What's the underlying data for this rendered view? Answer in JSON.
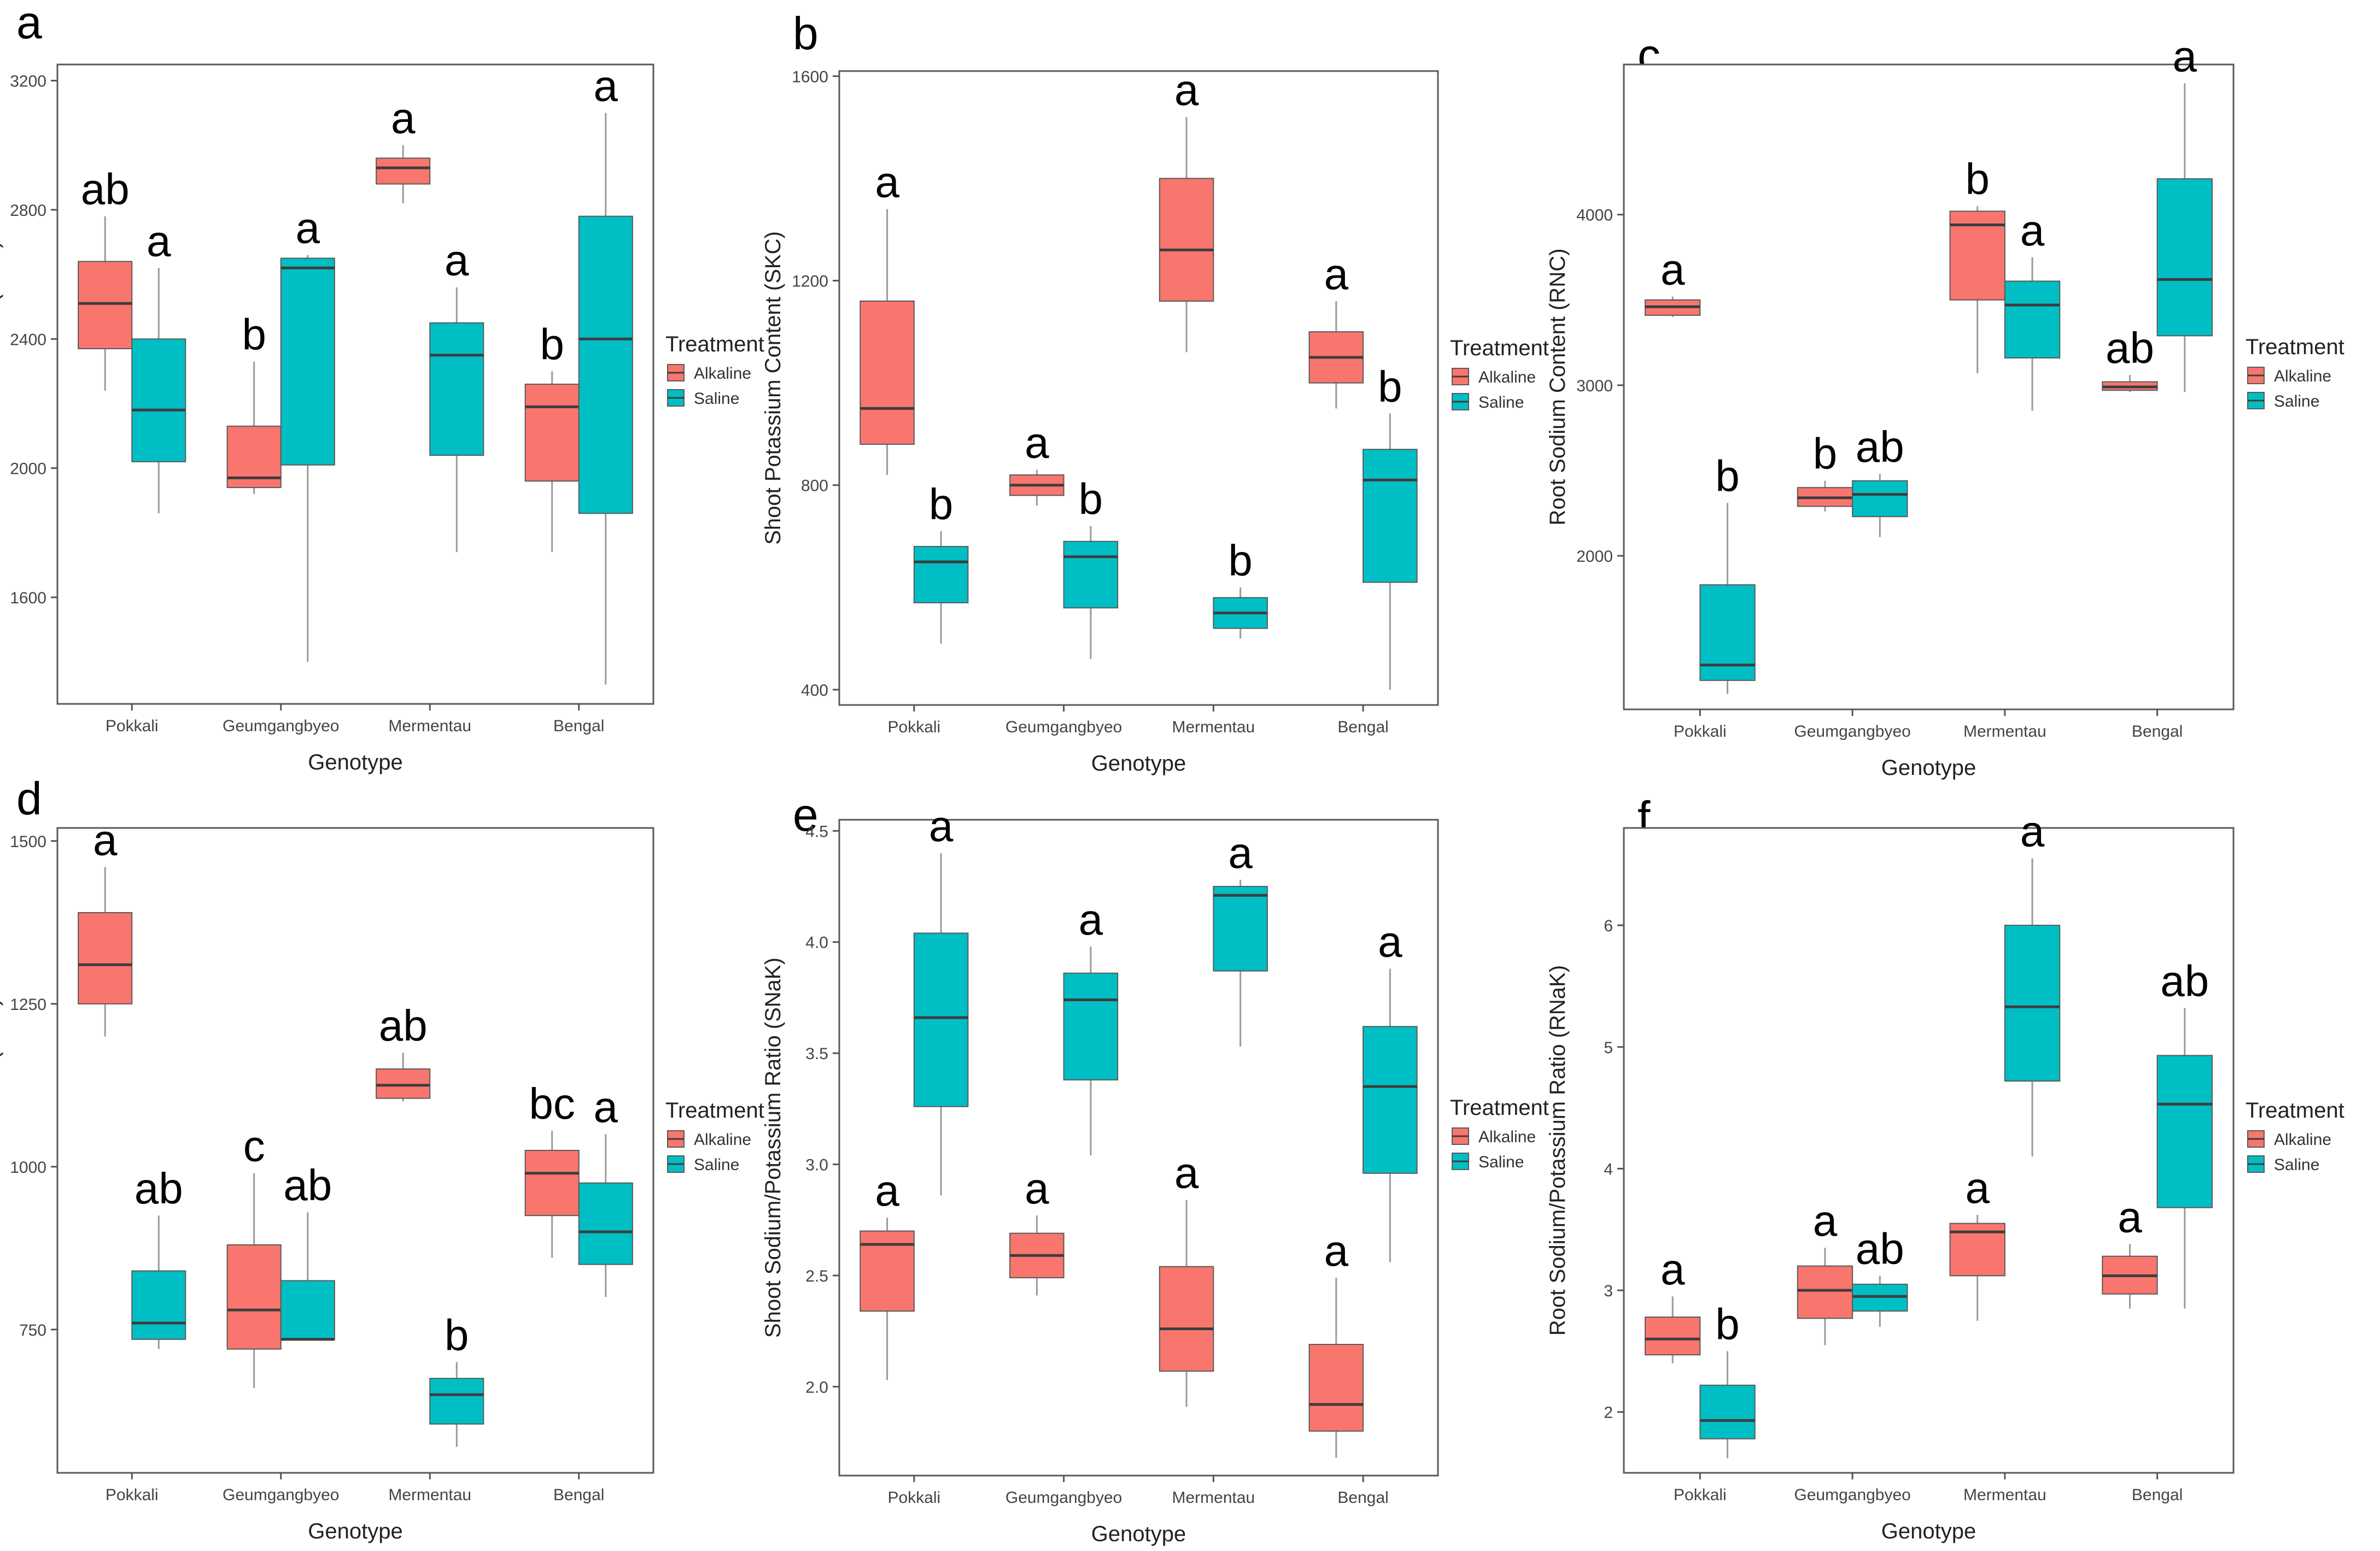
{
  "colors": {
    "alkaline": "#F8766D",
    "saline": "#00BFC4",
    "median": "#3d3d3d",
    "whisker": "#9a9a9a",
    "panel_border": "#5a5a5a"
  },
  "chart_data": [
    {
      "type": "box",
      "panel": "a",
      "ylabel": "Shoot Sodium Content (SNC)",
      "xlabel": "Genotype",
      "categories": [
        "Pokkali",
        "Geumgangbyeo",
        "Mermentau",
        "Bengal"
      ],
      "ylim": [
        1270,
        3250
      ],
      "yticks": [
        1600,
        2000,
        2400,
        2800,
        3200
      ],
      "legend": {
        "title": "Treatment",
        "entries": [
          "Alkaline",
          "Saline"
        ]
      },
      "series": [
        {
          "name": "Alkaline",
          "color": "#F8766D",
          "boxes": [
            {
              "min": 2240,
              "q1": 2370,
              "median": 2510,
              "q3": 2640,
              "max": 2780,
              "label": "ab"
            },
            {
              "min": 1920,
              "q1": 1940,
              "median": 1970,
              "q3": 2130,
              "max": 2330,
              "label": "b"
            },
            {
              "min": 2820,
              "q1": 2880,
              "median": 2930,
              "q3": 2960,
              "max": 3000,
              "label": "a"
            },
            {
              "min": 1740,
              "q1": 1960,
              "median": 2190,
              "q3": 2260,
              "max": 2300,
              "label": "b"
            }
          ]
        },
        {
          "name": "Saline",
          "color": "#00BFC4",
          "boxes": [
            {
              "min": 1860,
              "q1": 2020,
              "median": 2180,
              "q3": 2400,
              "max": 2620,
              "label": "a"
            },
            {
              "min": 1400,
              "q1": 2010,
              "median": 2620,
              "q3": 2650,
              "max": 2660,
              "label": "a"
            },
            {
              "min": 1740,
              "q1": 2040,
              "median": 2350,
              "q3": 2450,
              "max": 2560,
              "label": "a"
            },
            {
              "min": 1330,
              "q1": 1860,
              "median": 2400,
              "q3": 2780,
              "max": 3100,
              "label": "a"
            }
          ]
        }
      ]
    },
    {
      "type": "box",
      "panel": "b",
      "ylabel": "Shoot Potassium Content (SKC)",
      "xlabel": "Genotype",
      "categories": [
        "Pokkali",
        "Geumgangbyeo",
        "Mermentau",
        "Bengal"
      ],
      "ylim": [
        370,
        1610
      ],
      "yticks": [
        400,
        800,
        1200,
        1600
      ],
      "legend": {
        "title": "Treatment",
        "entries": [
          "Alkaline",
          "Saline"
        ]
      },
      "series": [
        {
          "name": "Alkaline",
          "color": "#F8766D",
          "boxes": [
            {
              "min": 820,
              "q1": 880,
              "median": 950,
              "q3": 1160,
              "max": 1340,
              "label": "a"
            },
            {
              "min": 760,
              "q1": 780,
              "median": 800,
              "q3": 820,
              "max": 830,
              "label": "a"
            },
            {
              "min": 1060,
              "q1": 1160,
              "median": 1260,
              "q3": 1400,
              "max": 1520,
              "label": "a"
            },
            {
              "min": 950,
              "q1": 1000,
              "median": 1050,
              "q3": 1100,
              "max": 1160,
              "label": "a"
            }
          ]
        },
        {
          "name": "Saline",
          "color": "#00BFC4",
          "boxes": [
            {
              "min": 490,
              "q1": 570,
              "median": 650,
              "q3": 680,
              "max": 710,
              "label": "b"
            },
            {
              "min": 460,
              "q1": 560,
              "median": 660,
              "q3": 690,
              "max": 720,
              "label": "b"
            },
            {
              "min": 500,
              "q1": 520,
              "median": 550,
              "q3": 580,
              "max": 600,
              "label": "b"
            },
            {
              "min": 400,
              "q1": 610,
              "median": 810,
              "q3": 870,
              "max": 940,
              "label": "b"
            }
          ]
        }
      ]
    },
    {
      "type": "box",
      "panel": "c",
      "ylabel": "Root Sodium Content (RNC)",
      "xlabel": "Genotype",
      "categories": [
        "Pokkali",
        "Geumgangbyeo",
        "Mermentau",
        "Bengal"
      ],
      "ylim": [
        1100,
        4880
      ],
      "yticks": [
        2000,
        3000,
        4000
      ],
      "legend": {
        "title": "Treatment",
        "entries": [
          "Alkaline",
          "Saline"
        ]
      },
      "series": [
        {
          "name": "Alkaline",
          "color": "#F8766D",
          "boxes": [
            {
              "min": 3400,
              "q1": 3410,
              "median": 3460,
              "q3": 3500,
              "max": 3520,
              "label": "a"
            },
            {
              "min": 2260,
              "q1": 2290,
              "median": 2340,
              "q3": 2400,
              "max": 2440,
              "label": "b"
            },
            {
              "min": 3070,
              "q1": 3500,
              "median": 3940,
              "q3": 4020,
              "max": 4050,
              "label": "b"
            },
            {
              "min": 2960,
              "q1": 2970,
              "median": 2990,
              "q3": 3020,
              "max": 3060,
              "label": "ab"
            }
          ]
        },
        {
          "name": "Saline",
          "color": "#00BFC4",
          "boxes": [
            {
              "min": 1190,
              "q1": 1270,
              "median": 1360,
              "q3": 1830,
              "max": 2310,
              "label": "b"
            },
            {
              "min": 2110,
              "q1": 2230,
              "median": 2360,
              "q3": 2440,
              "max": 2480,
              "label": "ab"
            },
            {
              "min": 2850,
              "q1": 3160,
              "median": 3470,
              "q3": 3610,
              "max": 3750,
              "label": "a"
            },
            {
              "min": 2960,
              "q1": 3290,
              "median": 3620,
              "q3": 4210,
              "max": 4770,
              "label": "a"
            }
          ]
        }
      ]
    },
    {
      "type": "box",
      "panel": "d",
      "ylabel": "Root Potassium Content (RKC)",
      "xlabel": "Genotype",
      "categories": [
        "Pokkali",
        "Geumgangbyeo",
        "Mermentau",
        "Bengal"
      ],
      "ylim": [
        530,
        1520
      ],
      "yticks": [
        750,
        1000,
        1250,
        1500
      ],
      "legend": {
        "title": "Treatment",
        "entries": [
          "Alkaline",
          "Saline"
        ]
      },
      "series": [
        {
          "name": "Alkaline",
          "color": "#F8766D",
          "boxes": [
            {
              "min": 1200,
              "q1": 1250,
              "median": 1310,
              "q3": 1390,
              "max": 1460,
              "label": "a"
            },
            {
              "min": 660,
              "q1": 720,
              "median": 780,
              "q3": 880,
              "max": 990,
              "label": "c"
            },
            {
              "min": 1100,
              "q1": 1105,
              "median": 1125,
              "q3": 1150,
              "max": 1175,
              "label": "ab"
            },
            {
              "min": 860,
              "q1": 925,
              "median": 990,
              "q3": 1025,
              "max": 1055,
              "label": "bc"
            }
          ]
        },
        {
          "name": "Saline",
          "color": "#00BFC4",
          "boxes": [
            {
              "min": 720,
              "q1": 735,
              "median": 760,
              "q3": 840,
              "max": 925,
              "label": "ab"
            },
            {
              "min": 735,
              "q1": 735,
              "median": 735,
              "q3": 825,
              "max": 930,
              "label": "ab"
            },
            {
              "min": 570,
              "q1": 605,
              "median": 650,
              "q3": 675,
              "max": 700,
              "label": "b"
            },
            {
              "min": 800,
              "q1": 850,
              "median": 900,
              "q3": 975,
              "max": 1050,
              "label": "a"
            }
          ]
        }
      ]
    },
    {
      "type": "box",
      "panel": "e",
      "ylabel": "Shoot Sodium/Potassium Ratio (SNaK)",
      "xlabel": "Genotype",
      "categories": [
        "Pokkali",
        "Geumgangbyeo",
        "Mermentau",
        "Bengal"
      ],
      "ylim": [
        1.6,
        4.55
      ],
      "yticks": [
        2.0,
        2.5,
        3.0,
        3.5,
        4.0,
        4.5
      ],
      "ytick_labels": [
        "2.0",
        "2.5",
        "3.0",
        "3.5",
        "4.0",
        "4.5"
      ],
      "legend": {
        "title": "Treatment",
        "entries": [
          "Alkaline",
          "Saline"
        ]
      },
      "series": [
        {
          "name": "Alkaline",
          "color": "#F8766D",
          "boxes": [
            {
              "min": 2.03,
              "q1": 2.34,
              "median": 2.64,
              "q3": 2.7,
              "max": 2.76,
              "label": "a"
            },
            {
              "min": 2.41,
              "q1": 2.49,
              "median": 2.59,
              "q3": 2.69,
              "max": 2.77,
              "label": "a"
            },
            {
              "min": 1.91,
              "q1": 2.07,
              "median": 2.26,
              "q3": 2.54,
              "max": 2.84,
              "label": "a"
            },
            {
              "min": 1.68,
              "q1": 1.8,
              "median": 1.92,
              "q3": 2.19,
              "max": 2.49,
              "label": "a"
            }
          ]
        },
        {
          "name": "Saline",
          "color": "#00BFC4",
          "boxes": [
            {
              "min": 2.86,
              "q1": 3.26,
              "median": 3.66,
              "q3": 4.04,
              "max": 4.4,
              "label": "a"
            },
            {
              "min": 3.04,
              "q1": 3.38,
              "median": 3.74,
              "q3": 3.86,
              "max": 3.98,
              "label": "a"
            },
            {
              "min": 3.53,
              "q1": 3.87,
              "median": 4.21,
              "q3": 4.25,
              "max": 4.28,
              "label": "a"
            },
            {
              "min": 2.56,
              "q1": 2.96,
              "median": 3.35,
              "q3": 3.62,
              "max": 3.88,
              "label": "a"
            }
          ]
        }
      ]
    },
    {
      "type": "box",
      "panel": "f",
      "ylabel": "Root Sodium/Potassium Ratio (RNaK)",
      "xlabel": "Genotype",
      "categories": [
        "Pokkali",
        "Geumgangbyeo",
        "Mermentau",
        "Bengal"
      ],
      "ylim": [
        1.5,
        6.8
      ],
      "yticks": [
        2,
        3,
        4,
        5,
        6
      ],
      "legend": {
        "title": "Treatment",
        "entries": [
          "Alkaline",
          "Saline"
        ]
      },
      "series": [
        {
          "name": "Alkaline",
          "color": "#F8766D",
          "boxes": [
            {
              "min": 2.4,
              "q1": 2.47,
              "median": 2.6,
              "q3": 2.78,
              "max": 2.95,
              "label": "a"
            },
            {
              "min": 2.55,
              "q1": 2.77,
              "median": 3.0,
              "q3": 3.2,
              "max": 3.35,
              "label": "a"
            },
            {
              "min": 2.75,
              "q1": 3.12,
              "median": 3.48,
              "q3": 3.55,
              "max": 3.62,
              "label": "a"
            },
            {
              "min": 2.85,
              "q1": 2.97,
              "median": 3.12,
              "q3": 3.28,
              "max": 3.38,
              "label": "a"
            }
          ]
        },
        {
          "name": "Saline",
          "color": "#00BFC4",
          "boxes": [
            {
              "min": 1.62,
              "q1": 1.78,
              "median": 1.93,
              "q3": 2.22,
              "max": 2.5,
              "label": "b"
            },
            {
              "min": 2.7,
              "q1": 2.83,
              "median": 2.95,
              "q3": 3.05,
              "max": 3.12,
              "label": "ab"
            },
            {
              "min": 4.1,
              "q1": 4.72,
              "median": 5.33,
              "q3": 6.0,
              "max": 6.55,
              "label": "a"
            },
            {
              "min": 2.85,
              "q1": 3.68,
              "median": 4.53,
              "q3": 4.93,
              "max": 5.32,
              "label": "ab"
            }
          ]
        }
      ]
    }
  ]
}
